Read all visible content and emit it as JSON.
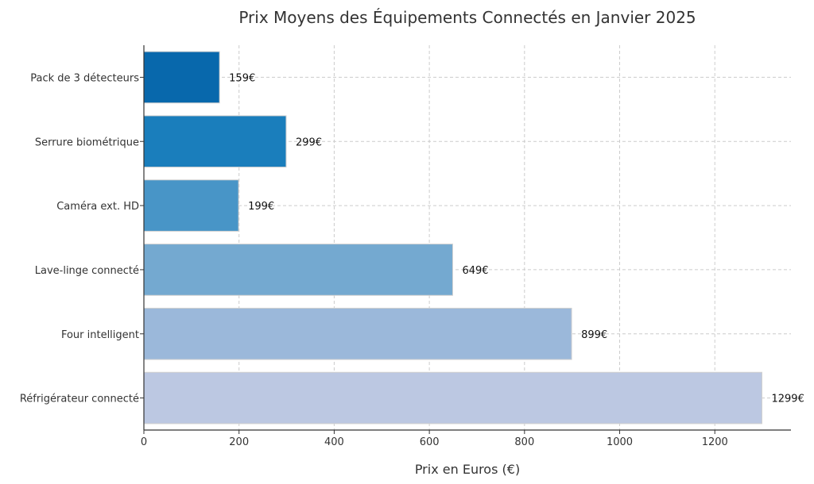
{
  "chart_data": {
    "type": "bar",
    "orientation": "horizontal",
    "title": "Prix Moyens des Équipements Connectés en Janvier 2025",
    "xlabel": "Prix en Euros (€)",
    "ylabel": "",
    "xlim": [
      0,
      1360
    ],
    "xticks": [
      0,
      200,
      400,
      600,
      800,
      1000,
      1200
    ],
    "grid": true,
    "value_suffix": "€",
    "categories": [
      "Pack de 3 détecteurs",
      "Serrure biométrique",
      "Caméra ext. HD",
      "Lave-linge connecté",
      "Four intelligent",
      "Réfrigérateur connecté"
    ],
    "values": [
      159,
      299,
      199,
      649,
      899,
      1299
    ],
    "colors": [
      "#0868ac",
      "#1a7ebc",
      "#4895c7",
      "#74a9d0",
      "#9bb8da",
      "#bcc8e2"
    ],
    "data_labels": [
      "159€",
      "299€",
      "199€",
      "649€",
      "899€",
      "1299€"
    ]
  }
}
